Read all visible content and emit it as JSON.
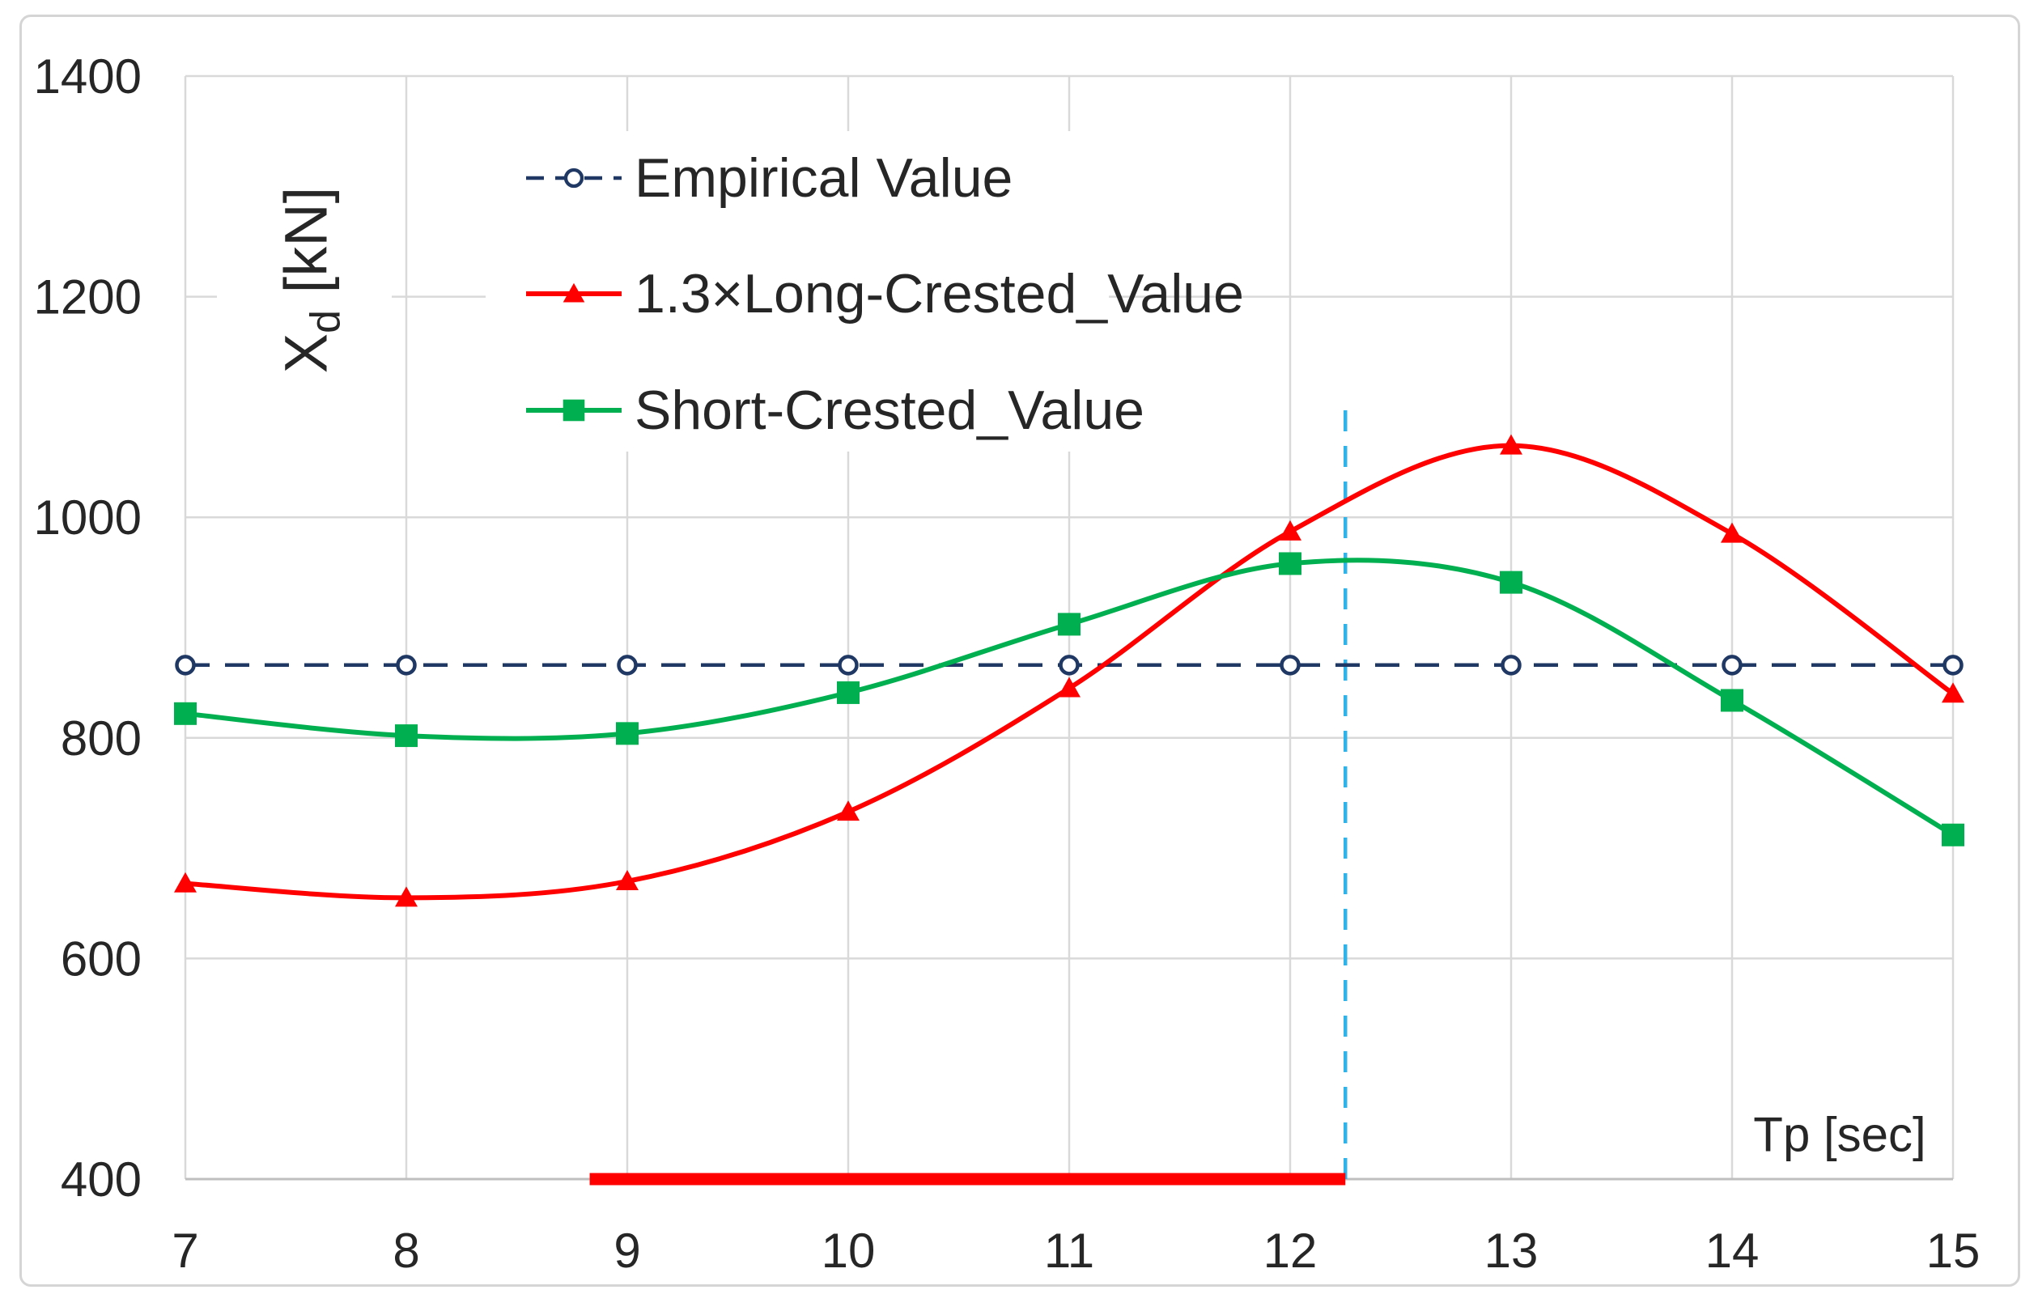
{
  "chart_data": {
    "type": "line",
    "title": "",
    "xlabel": "Tp [sec]",
    "ylabel": "Xd [kN]",
    "ylabel_parts": {
      "main": "X",
      "sub": "d",
      "unit": "[kN]"
    },
    "xlim": [
      7,
      15
    ],
    "ylim": [
      400,
      1400
    ],
    "xticks": [
      7,
      8,
      9,
      10,
      11,
      12,
      13,
      14,
      15
    ],
    "yticks": [
      400,
      600,
      800,
      1000,
      1200,
      1400
    ],
    "grid": true,
    "legend_position": "upper-left-inside",
    "x": [
      7,
      8,
      9,
      10,
      11,
      12,
      13,
      14,
      15
    ],
    "series": [
      {
        "id": "empirical",
        "name": "Empirical Value",
        "color": "#1F3864",
        "line_style": "dashed",
        "marker": "circle-open",
        "smooth": false,
        "values": [
          866,
          866,
          866,
          866,
          866,
          866,
          866,
          866,
          866
        ]
      },
      {
        "id": "long-crested",
        "name": "1.3×Long-Crested_Value",
        "color": "#FE0000",
        "line_style": "solid",
        "marker": "triangle",
        "smooth": true,
        "values": [
          668,
          655,
          670,
          733,
          845,
          987,
          1065,
          985,
          840
        ]
      },
      {
        "id": "short-crested",
        "name": "Short-Crested_Value",
        "color": "#00B050",
        "line_style": "solid",
        "marker": "square",
        "smooth": true,
        "values": [
          822,
          802,
          804,
          841,
          903,
          958,
          941,
          834,
          712
        ]
      }
    ],
    "annotations": {
      "vline": {
        "x": 12.25,
        "y_from": 400,
        "y_to": 1100,
        "color": "#2FB3E8",
        "style": "dashed"
      },
      "threshold_segment": {
        "y": 400,
        "x_from": 8.83,
        "x_to": 12.25,
        "color": "#FE0000"
      }
    },
    "colors": {
      "gridline": "#D9D9D9",
      "axis_line": "#BFBFBF",
      "tick_text": "#262626",
      "marker_fill_open": "#FFFFFF"
    }
  }
}
